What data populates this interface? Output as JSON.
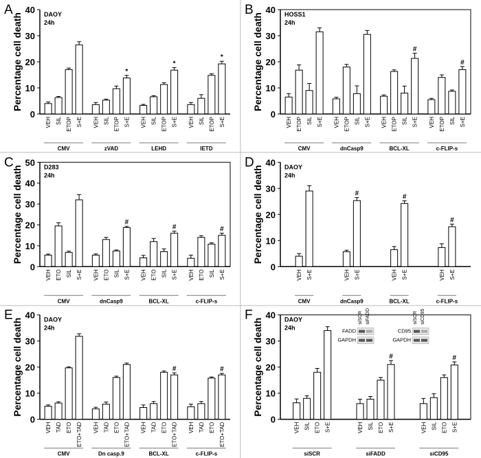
{
  "chart_data": [
    {
      "type": "bar",
      "panel": "A",
      "annotation": [
        "DAOY",
        "24h"
      ],
      "ylabel": "Percentage cell death",
      "color": "#ffffff",
      "frame": false,
      "ylim": [
        0,
        40
      ],
      "yticks": [
        0,
        10,
        20,
        30,
        40
      ],
      "groups": [
        {
          "name": "CMV",
          "categories": [
            "VEH",
            "SIL",
            "ETOP",
            "S+E"
          ],
          "values": [
            4,
            6.3,
            17,
            26.5
          ],
          "errors": [
            0.6,
            0.4,
            0.6,
            1.2
          ],
          "marks": [
            null,
            null,
            null,
            null
          ]
        },
        {
          "name": "zVAD",
          "categories": [
            "VEH",
            "SIL",
            "ETOP",
            "S+E"
          ],
          "values": [
            3.6,
            5.3,
            9.7,
            13.8
          ],
          "errors": [
            0.8,
            0.4,
            1,
            1
          ],
          "marks": [
            null,
            null,
            null,
            "*"
          ]
        },
        {
          "name": "LEHD",
          "categories": [
            "VEH",
            "SIL",
            "ETOP",
            "S+E"
          ],
          "values": [
            3.3,
            6.6,
            11.3,
            16.8
          ],
          "errors": [
            0.4,
            0.4,
            0.7,
            1
          ],
          "marks": [
            null,
            null,
            null,
            "*"
          ]
        },
        {
          "name": "IETD",
          "categories": [
            "VEH",
            "SIL",
            "ETOP",
            "S+E"
          ],
          "values": [
            3.6,
            6,
            14.8,
            19.2
          ],
          "errors": [
            0.8,
            1.4,
            0.6,
            1
          ],
          "marks": [
            null,
            null,
            null,
            "*"
          ]
        }
      ]
    },
    {
      "type": "bar",
      "panel": "B",
      "annotation": [
        "HOSS1",
        "24h"
      ],
      "ylabel": "Percentage cell death",
      "color": "#ffffff",
      "frame": true,
      "ylim": [
        0,
        40
      ],
      "yticks": [
        0,
        10,
        20,
        30,
        40
      ],
      "groups": [
        {
          "name": "CMV",
          "categories": [
            "VEH",
            "ETOP",
            "SIL",
            "S+E"
          ],
          "values": [
            6.5,
            16.8,
            9,
            31.5
          ],
          "errors": [
            1.3,
            2,
            2.7,
            1.5
          ],
          "marks": [
            null,
            null,
            null,
            null
          ]
        },
        {
          "name": "dnCasp9",
          "categories": [
            "VEH",
            "ETOP",
            "SIL",
            "S+E"
          ],
          "values": [
            5.8,
            18,
            7.8,
            30.5
          ],
          "errors": [
            0.6,
            1,
            3,
            1.5
          ],
          "marks": [
            null,
            null,
            null,
            null
          ]
        },
        {
          "name": "BCL-XL",
          "categories": [
            "VEH",
            "ETOP",
            "SIL",
            "S+E"
          ],
          "values": [
            6.8,
            16.3,
            8,
            21.3
          ],
          "errors": [
            0.5,
            0.6,
            2.7,
            2
          ],
          "marks": [
            null,
            null,
            null,
            "#"
          ]
        },
        {
          "name": "c-FLIP-s",
          "categories": [
            "VEH",
            "ETOP",
            "SIL",
            "S+E"
          ],
          "values": [
            5.5,
            14,
            8.7,
            17
          ],
          "errors": [
            0.5,
            1,
            0.5,
            1.2
          ],
          "marks": [
            null,
            null,
            null,
            "#"
          ]
        }
      ]
    },
    {
      "type": "bar",
      "panel": "C",
      "annotation": [
        "D283",
        "24h"
      ],
      "ylabel": "Percentage cell death",
      "color": "#ffffff",
      "frame": true,
      "ylim": [
        0,
        50
      ],
      "yticks": [
        0,
        10,
        20,
        30,
        40,
        50
      ],
      "groups": [
        {
          "name": "CMV",
          "categories": [
            "VEH",
            "ETO",
            "SIL",
            "S+E"
          ],
          "values": [
            5.5,
            19.5,
            6.8,
            32
          ],
          "errors": [
            0.5,
            1.5,
            0.6,
            2.5
          ],
          "marks": [
            null,
            null,
            null,
            null
          ]
        },
        {
          "name": "dnCasp9",
          "categories": [
            "VEH",
            "ETO",
            "SIL",
            "S+E"
          ],
          "values": [
            5.5,
            13,
            7.5,
            18.7
          ],
          "errors": [
            0.6,
            1,
            0.5,
            0.6
          ],
          "marks": [
            null,
            null,
            null,
            "#"
          ]
        },
        {
          "name": "BCL-XL",
          "categories": [
            "VEH",
            "ETO",
            "SIL",
            "S+E"
          ],
          "values": [
            4.2,
            12,
            7.2,
            16
          ],
          "errors": [
            1.2,
            1.5,
            1.3,
            1
          ],
          "marks": [
            null,
            null,
            null,
            "#"
          ]
        },
        {
          "name": "c-FLIP-s",
          "categories": [
            "VEH",
            "ETO",
            "SIL",
            "S+E"
          ],
          "values": [
            4,
            14,
            10.8,
            15
          ],
          "errors": [
            1.5,
            0.8,
            0.6,
            1
          ],
          "marks": [
            null,
            null,
            null,
            "#"
          ]
        }
      ]
    },
    {
      "type": "bar",
      "panel": "D",
      "annotation": [
        "DAOY",
        "24h"
      ],
      "ylabel": "Percentage cell death",
      "color": "#ffffff",
      "frame": false,
      "ylim": [
        0,
        40
      ],
      "yticks": [
        0,
        10,
        20,
        30,
        40
      ],
      "groups": [
        {
          "name": "CMV",
          "categories": [
            "VEH",
            "S+E"
          ],
          "values": [
            4,
            29
          ],
          "errors": [
            1,
            2
          ],
          "marks": [
            null,
            null
          ]
        },
        {
          "name": "dnCasp9",
          "categories": [
            "VEH",
            "S+E"
          ],
          "values": [
            5.7,
            25.3
          ],
          "errors": [
            0.6,
            1.2
          ],
          "marks": [
            null,
            "#"
          ]
        },
        {
          "name": "BCL-XL",
          "categories": [
            "VEH",
            "S+E"
          ],
          "values": [
            6.5,
            24.2
          ],
          "errors": [
            1.2,
            1
          ],
          "marks": [
            null,
            "#"
          ]
        },
        {
          "name": "c-FLIP-s",
          "categories": [
            "VEH",
            "S+E"
          ],
          "values": [
            7.3,
            15.3
          ],
          "errors": [
            1.5,
            1
          ],
          "marks": [
            null,
            "#"
          ]
        }
      ]
    },
    {
      "type": "bar",
      "panel": "E",
      "annotation": [
        "DAOY",
        "24h"
      ],
      "ylabel": "Percentage cell death",
      "color": "#ffffff",
      "frame": false,
      "ylim": [
        0,
        40
      ],
      "yticks": [
        0,
        10,
        20,
        30,
        40
      ],
      "groups": [
        {
          "name": "CMV",
          "categories": [
            "VEH",
            "TAD",
            "ETO",
            "ETO+TAD"
          ],
          "values": [
            5,
            6.2,
            19.7,
            31.8
          ],
          "errors": [
            0.5,
            0.5,
            0.4,
            1
          ],
          "marks": [
            null,
            null,
            null,
            null
          ]
        },
        {
          "name": "Dn casp.9",
          "categories": [
            "VEH",
            "TAD",
            "ETO",
            "ETO+TAD"
          ],
          "values": [
            4,
            5.8,
            16,
            21
          ],
          "errors": [
            0.6,
            0.8,
            0.5,
            0.5
          ],
          "marks": [
            null,
            null,
            null,
            null
          ]
        },
        {
          "name": "BCL-XL",
          "categories": [
            "VEH",
            "TAD",
            "ETO",
            "ETO+TAD"
          ],
          "values": [
            4.5,
            6,
            18,
            17
          ],
          "errors": [
            1,
            0.8,
            0.5,
            0.8
          ],
          "marks": [
            null,
            null,
            null,
            "#"
          ]
        },
        {
          "name": "c-FLIP-s",
          "categories": [
            "VEH",
            "TAD",
            "ETO",
            "ETO+TAD"
          ],
          "values": [
            4.8,
            6,
            15.8,
            17
          ],
          "errors": [
            1,
            0.8,
            0.4,
            0.6
          ],
          "marks": [
            null,
            null,
            null,
            "#"
          ]
        }
      ]
    },
    {
      "type": "bar",
      "panel": "F",
      "annotation": [
        "DAOY",
        "24h"
      ],
      "ylabel": "Percentage cell death",
      "color": "#ffffff",
      "frame": true,
      "ylim": [
        0,
        40
      ],
      "yticks": [
        0,
        10,
        20,
        30,
        40
      ],
      "insets": [
        {
          "rows": [
            "FADD",
            "GAPDH"
          ],
          "columns": [
            "siSCR",
            "siFADD"
          ]
        },
        {
          "rows": [
            "CD95",
            "GAPDH"
          ],
          "columns": [
            "siSCR",
            "siCD95"
          ]
        }
      ],
      "groups": [
        {
          "name": "siSCR",
          "categories": [
            "VEH",
            "SIL",
            "ETO",
            "S+E"
          ],
          "values": [
            6.3,
            8,
            18,
            34
          ],
          "errors": [
            1.5,
            1,
            1.5,
            1.5
          ],
          "marks": [
            null,
            null,
            null,
            null
          ]
        },
        {
          "name": "siFADD",
          "categories": [
            "VEH",
            "SIL",
            "ETO",
            "S+E"
          ],
          "values": [
            6,
            7.7,
            15,
            21
          ],
          "errors": [
            1.7,
            1,
            1,
            1.5
          ],
          "marks": [
            null,
            null,
            null,
            "#"
          ]
        },
        {
          "name": "siCD95",
          "categories": [
            "VEH",
            "SIL",
            "ETO",
            "S+E"
          ],
          "values": [
            6,
            8.3,
            16,
            20.8
          ],
          "errors": [
            2,
            1.5,
            1,
            1.2
          ],
          "marks": [
            null,
            null,
            null,
            "#"
          ]
        }
      ]
    }
  ]
}
